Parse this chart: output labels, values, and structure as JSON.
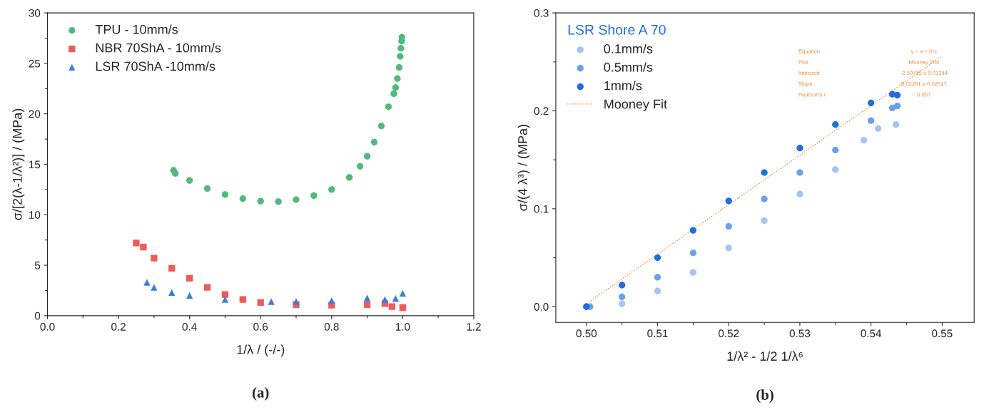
{
  "chart_data": [
    {
      "type": "scatter",
      "xlabel": "1/λ / (-/-)",
      "ylabel": "σ/[2(λ-1/λ²)] / (MPa)",
      "xlim": [
        0,
        1.2
      ],
      "ylim": [
        0,
        30
      ],
      "xticks": [
        {
          "value": 0,
          "label": "0.0"
        },
        {
          "value": 0.1,
          "label": null
        },
        {
          "value": 0.2,
          "label": "0.2"
        },
        {
          "value": 0.3,
          "label": null
        },
        {
          "value": 0.4,
          "label": "0.4"
        },
        {
          "value": 0.5,
          "label": null
        },
        {
          "value": 0.6,
          "label": "0.6"
        },
        {
          "value": 0.7,
          "label": null
        },
        {
          "value": 0.8,
          "label": "0.8"
        },
        {
          "value": 0.9,
          "label": null
        },
        {
          "value": 1.0,
          "label": "1.0"
        },
        {
          "value": 1.1,
          "label": null
        },
        {
          "value": 1.2,
          "label": "1.2"
        }
      ],
      "yticks": [
        0,
        {
          "value": 2.5,
          "label": null
        },
        5,
        {
          "value": 7.5,
          "label": null
        },
        10,
        {
          "value": 12.5,
          "label": null
        },
        15,
        {
          "value": 17.5,
          "label": null
        },
        20,
        {
          "value": 22.5,
          "label": null
        },
        25,
        {
          "value": 27.5,
          "label": null
        },
        30
      ],
      "legend": "top left",
      "annotations": [
        "(a)"
      ],
      "series": [
        {
          "name": "TPU - 10mm/s",
          "color": "#4fba7c",
          "marker": "circle",
          "x": [
            0.355,
            0.36,
            0.4,
            0.45,
            0.5,
            0.55,
            0.6,
            0.65,
            0.7,
            0.75,
            0.8,
            0.85,
            0.88,
            0.9,
            0.92,
            0.94,
            0.96,
            0.975,
            0.98,
            0.985,
            0.99,
            0.993,
            0.995,
            0.997,
            0.998
          ],
          "values": [
            14.4,
            14.1,
            13.4,
            12.6,
            12.0,
            11.6,
            11.35,
            11.3,
            11.5,
            11.9,
            12.5,
            13.7,
            14.8,
            15.8,
            17.2,
            18.8,
            20.7,
            22.0,
            22.6,
            23.5,
            24.6,
            25.7,
            26.5,
            27.2,
            27.6
          ]
        },
        {
          "name": "NBR 70ShA - 10mm/s",
          "color": "#ef5a5a",
          "marker": "square",
          "x": [
            0.25,
            0.27,
            0.3,
            0.35,
            0.4,
            0.45,
            0.5,
            0.55,
            0.6,
            0.7,
            0.8,
            0.9,
            0.95,
            0.97,
            1.0
          ],
          "values": [
            7.2,
            6.8,
            5.7,
            4.7,
            3.7,
            2.8,
            2.1,
            1.6,
            1.3,
            1.1,
            1.05,
            1.1,
            1.2,
            0.9,
            0.8
          ]
        },
        {
          "name": "LSR 70ShA -10mm/s",
          "color": "#3a7fdc",
          "marker": "triangle",
          "x": [
            0.28,
            0.3,
            0.35,
            0.4,
            0.5,
            0.63,
            0.7,
            0.8,
            0.9,
            0.95,
            0.98,
            1.0
          ],
          "values": [
            3.3,
            2.8,
            2.3,
            2.0,
            1.6,
            1.4,
            1.4,
            1.5,
            1.75,
            1.6,
            1.7,
            2.2
          ]
        }
      ]
    },
    {
      "type": "scatter",
      "xlabel": "1/λ² - 1/2 1/λ⁶",
      "ylabel": "σ/(4 λ³) / (MPa)",
      "legend_title": "LSR Shore A 70",
      "xlim": [
        0.4957,
        0.5545
      ],
      "ylim": [
        -0.016,
        0.3
      ],
      "xticks": [
        {
          "value": 0.5,
          "label": "0.50"
        },
        {
          "value": 0.505,
          "label": null
        },
        {
          "value": 0.51,
          "label": "0.51"
        },
        {
          "value": 0.515,
          "label": null
        },
        {
          "value": 0.52,
          "label": "0.52"
        },
        {
          "value": 0.525,
          "label": null
        },
        {
          "value": 0.53,
          "label": "0.53"
        },
        {
          "value": 0.535,
          "label": null
        },
        {
          "value": 0.54,
          "label": "0.54"
        },
        {
          "value": 0.545,
          "label": null
        },
        {
          "value": 0.55,
          "label": "0.55"
        }
      ],
      "yticks": [
        {
          "value": 0,
          "label": "0.0"
        },
        {
          "value": 0.05,
          "label": null
        },
        0.1,
        {
          "value": 0.15,
          "label": null
        },
        0.2,
        {
          "value": 0.25,
          "label": null
        },
        0.3
      ],
      "legend": "top left",
      "annotations": [
        "Equation",
        "y = a + b*x",
        "Plot",
        "Mooney Plot",
        "Intercept",
        "-2.50715 ± 0.01344",
        "Slope",
        "5.02291 ± 0.02517",
        "Pearson's r",
        "0.957",
        "(b)"
      ],
      "series": [
        {
          "name": "0.1mm/s",
          "color": "#a4c4f4",
          "marker": "circle",
          "x": [
            0.5,
            0.505,
            0.51,
            0.515,
            0.52,
            0.525,
            0.53,
            0.535,
            0.539,
            0.541,
            0.5435
          ],
          "values": [
            0,
            0.003,
            0.016,
            0.035,
            0.06,
            0.088,
            0.115,
            0.14,
            0.17,
            0.182,
            0.186
          ]
        },
        {
          "name": "0.5mm/s",
          "color": "#6aa0ec",
          "marker": "circle",
          "x": [
            0.5005,
            0.505,
            0.51,
            0.515,
            0.52,
            0.525,
            0.53,
            0.535,
            0.54,
            0.543,
            0.5437
          ],
          "values": [
            0,
            0.01,
            0.03,
            0.055,
            0.082,
            0.11,
            0.137,
            0.16,
            0.19,
            0.203,
            0.205
          ]
        },
        {
          "name": "1mm/s",
          "color": "#1f6fdc",
          "marker": "circle",
          "x": [
            0.5,
            0.505,
            0.51,
            0.515,
            0.52,
            0.525,
            0.53,
            0.535,
            0.54,
            0.543,
            0.5437
          ],
          "values": [
            0,
            0.022,
            0.05,
            0.078,
            0.108,
            0.137,
            0.162,
            0.186,
            0.208,
            0.217,
            0.216
          ]
        },
        {
          "name": "Mooney Fit",
          "type": "line",
          "line_style": "dotted",
          "marker": "none",
          "color": "#f08a3c",
          "x": [
            0.5,
            0.55
          ],
          "values": [
            0.003,
            0.256
          ]
        }
      ]
    }
  ]
}
